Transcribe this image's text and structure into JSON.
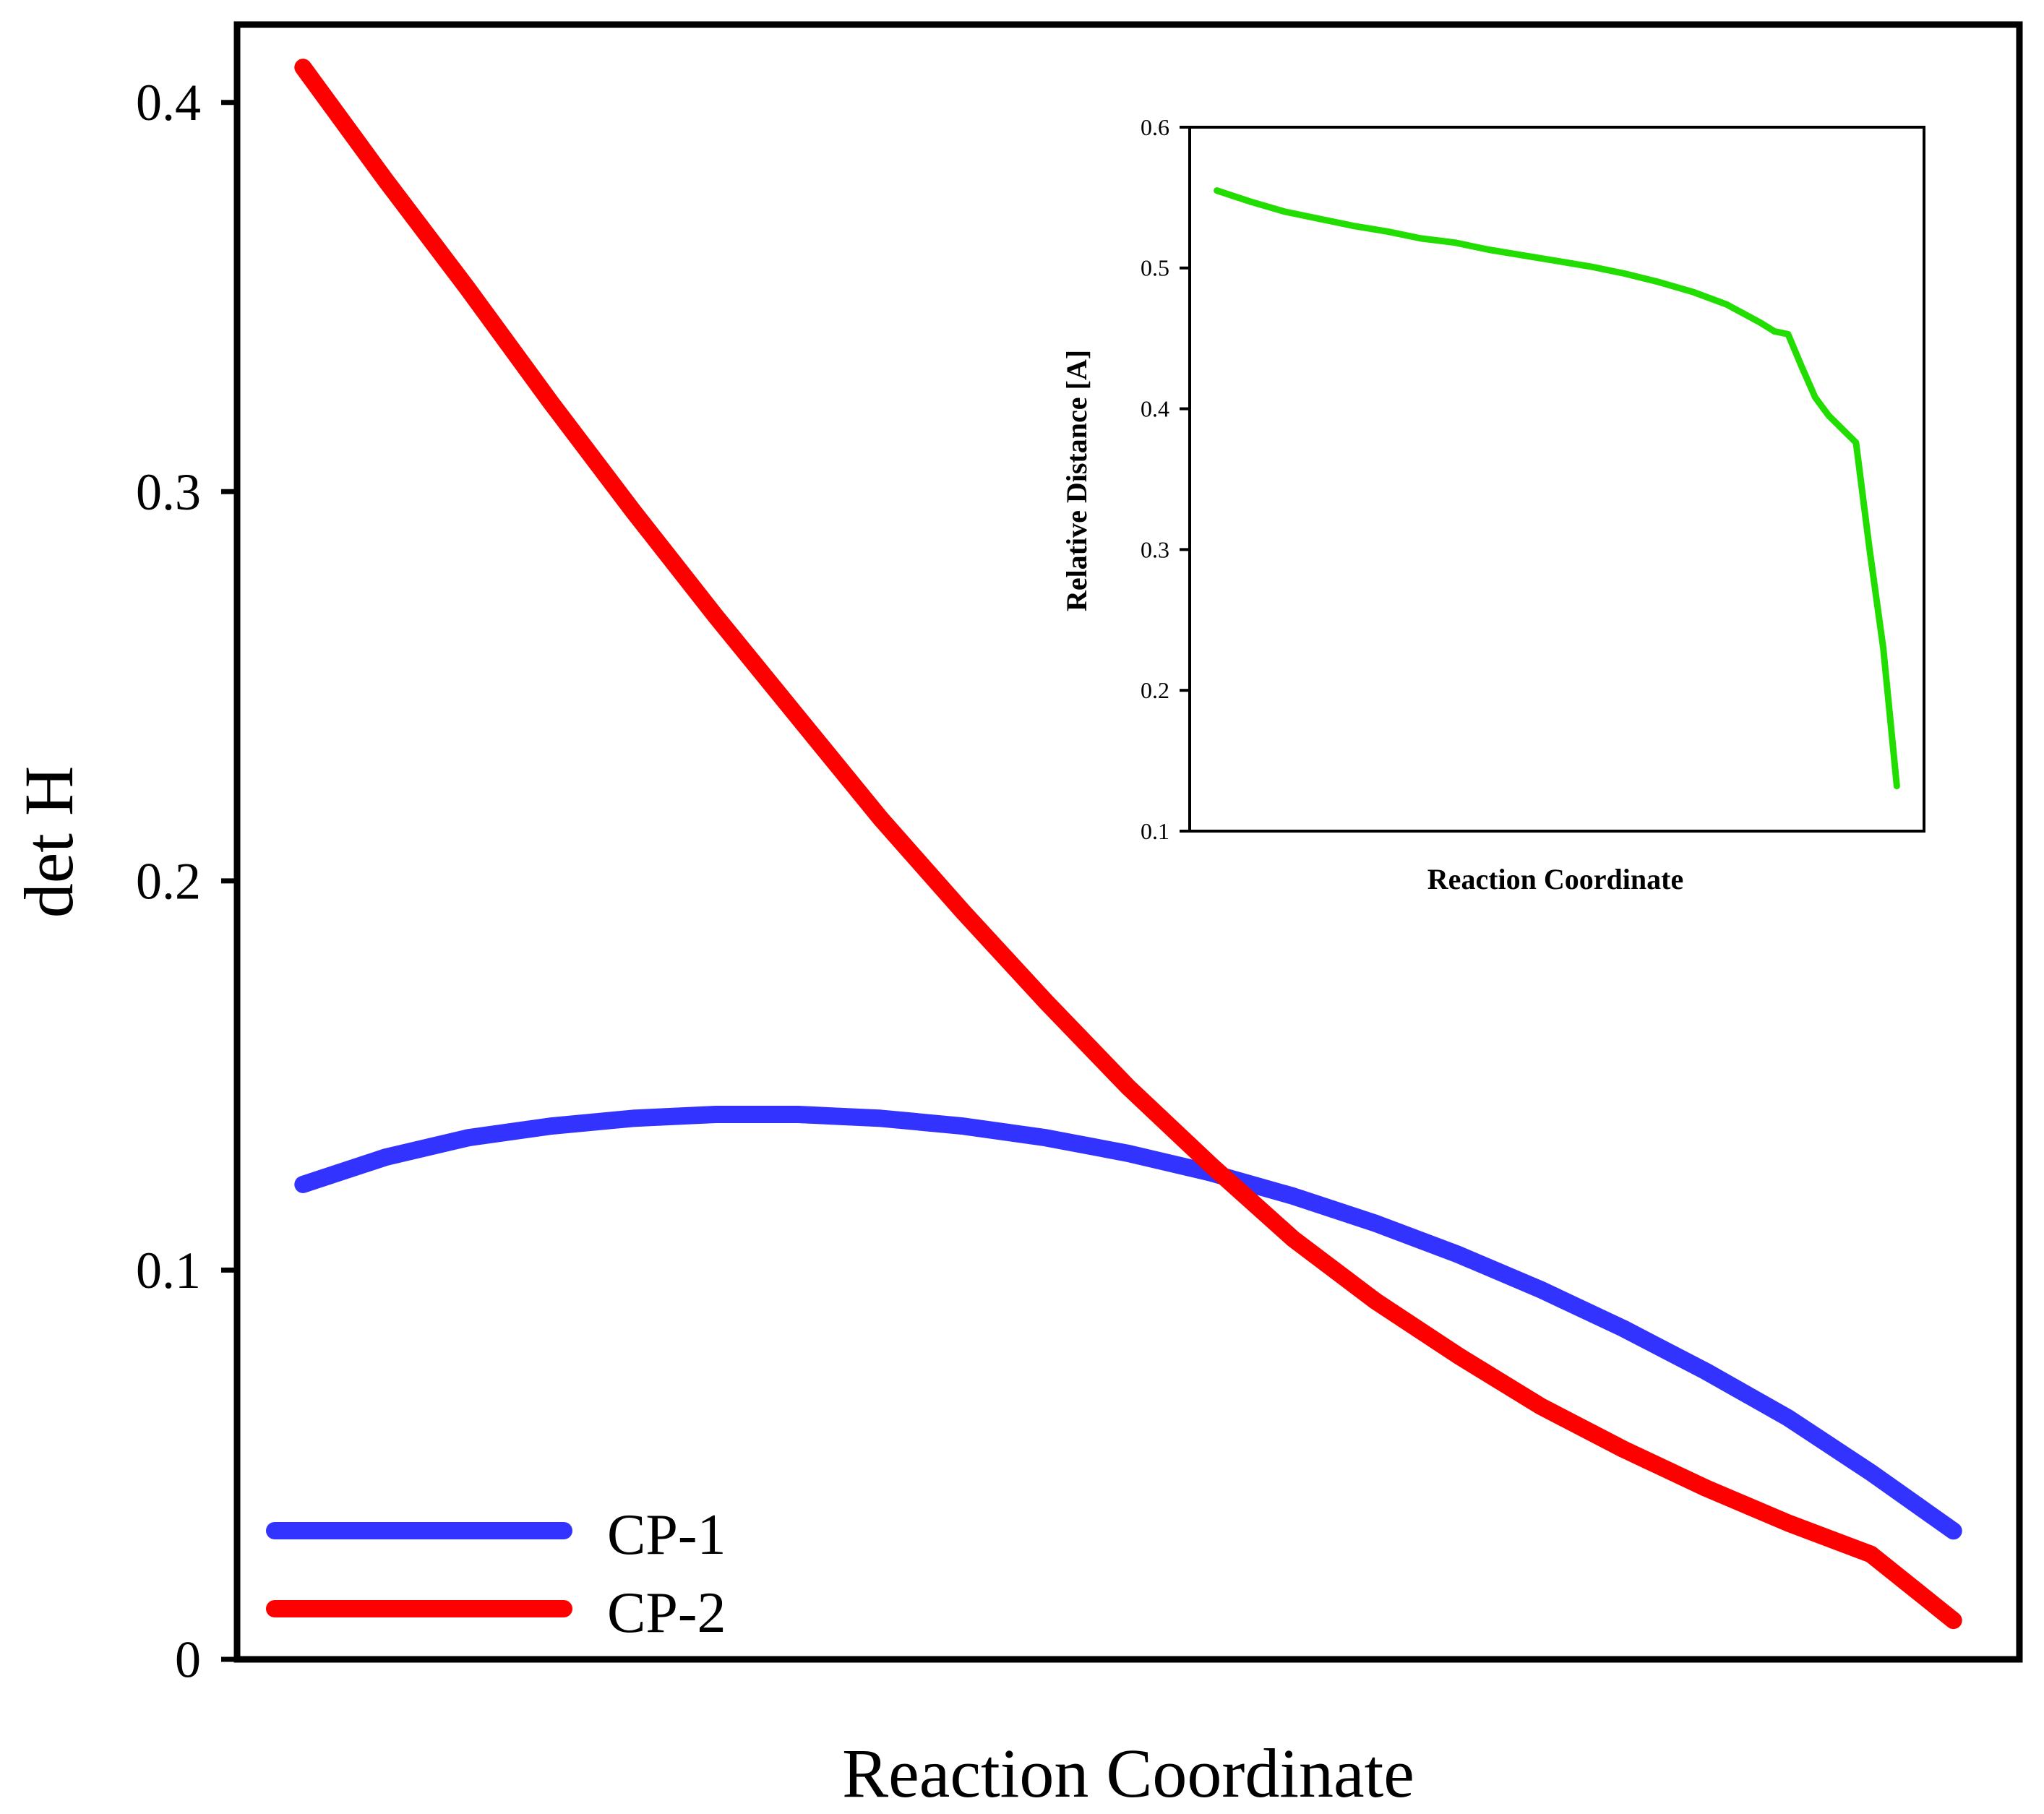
{
  "chart_data": [
    {
      "type": "line",
      "title": "",
      "xlabel": "Reaction Coordinate",
      "ylabel": "det H",
      "xlim": [
        -0.04,
        1.04
      ],
      "ylim": [
        0,
        0.42
      ],
      "yticks": [
        0,
        0.1,
        0.2,
        0.3,
        0.4
      ],
      "ytick_labels": [
        "0",
        "0.1",
        "0.2",
        "0.3",
        "0.4"
      ],
      "grid": false,
      "legend_position": "bottom-left",
      "series": [
        {
          "name": "CP-1",
          "color": "#3333ff",
          "x": [
            0,
            0.05,
            0.1,
            0.15,
            0.2,
            0.25,
            0.3,
            0.35,
            0.4,
            0.45,
            0.5,
            0.55,
            0.6,
            0.65,
            0.7,
            0.75,
            0.8,
            0.85,
            0.9,
            0.95,
            1.0
          ],
          "y": [
            0.122,
            0.129,
            0.134,
            0.137,
            0.139,
            0.14,
            0.14,
            0.139,
            0.137,
            0.134,
            0.13,
            0.125,
            0.119,
            0.112,
            0.104,
            0.095,
            0.085,
            0.074,
            0.062,
            0.048,
            0.033
          ]
        },
        {
          "name": "CP-2",
          "color": "#ff0000",
          "x": [
            0,
            0.05,
            0.1,
            0.15,
            0.2,
            0.25,
            0.3,
            0.35,
            0.4,
            0.45,
            0.5,
            0.55,
            0.6,
            0.65,
            0.7,
            0.75,
            0.8,
            0.85,
            0.9,
            0.95,
            1.0
          ],
          "y": [
            0.409,
            0.38,
            0.352,
            0.323,
            0.295,
            0.268,
            0.242,
            0.216,
            0.192,
            0.169,
            0.147,
            0.127,
            0.108,
            0.092,
            0.078,
            0.065,
            0.054,
            0.044,
            0.035,
            0.027,
            0.01
          ]
        }
      ]
    },
    {
      "type": "line",
      "title": "",
      "xlabel": "Reaction Coordinate",
      "ylabel": "Relative Distance [A]",
      "xlim": [
        -0.04,
        1.04
      ],
      "ylim": [
        0.1,
        0.6
      ],
      "yticks": [
        0.1,
        0.2,
        0.3,
        0.4,
        0.5,
        0.6
      ],
      "ytick_labels": [
        "0.1",
        "0.2",
        "0.3",
        "0.4",
        "0.5",
        "0.6"
      ],
      "grid": false,
      "series": [
        {
          "name": "Relative Distance",
          "color": "#22dd00",
          "x": [
            0,
            0.05,
            0.1,
            0.15,
            0.2,
            0.25,
            0.3,
            0.35,
            0.4,
            0.45,
            0.5,
            0.55,
            0.6,
            0.65,
            0.7,
            0.75,
            0.8,
            0.82,
            0.84,
            0.86,
            0.88,
            0.9,
            0.94,
            0.96,
            0.98,
            1.0
          ],
          "y": [
            0.555,
            0.547,
            0.54,
            0.535,
            0.53,
            0.526,
            0.521,
            0.518,
            0.513,
            0.509,
            0.505,
            0.501,
            0.496,
            0.49,
            0.483,
            0.474,
            0.461,
            0.455,
            0.453,
            0.43,
            0.408,
            0.395,
            0.376,
            0.3,
            0.23,
            0.132
          ]
        }
      ]
    }
  ]
}
